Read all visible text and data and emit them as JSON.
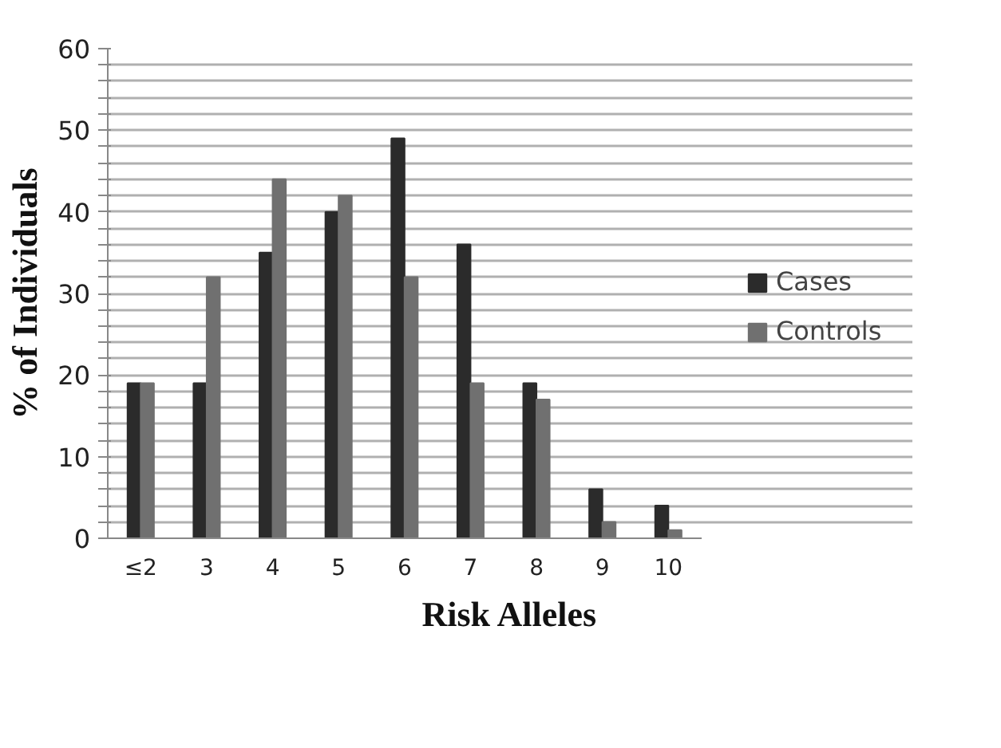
{
  "chart_data": {
    "type": "bar",
    "xlabel": "Risk Alleles",
    "ylabel": "% of Individuals",
    "categories": [
      "≤2",
      "3",
      "4",
      "5",
      "6",
      "7",
      "8",
      "9",
      "10"
    ],
    "series": [
      {
        "name": "Cases",
        "color": "#2b2b2b",
        "values": [
          19,
          19,
          35,
          40,
          49,
          36,
          19,
          6,
          4
        ]
      },
      {
        "name": "Controls",
        "color": "#707070",
        "values": [
          19,
          32,
          44,
          42,
          32,
          19,
          17,
          2,
          1
        ]
      }
    ],
    "ylim": [
      0,
      60
    ],
    "yticks": [
      0,
      {
        "value": 2,
        "label": null
      },
      {
        "value": 4,
        "label": null
      },
      {
        "value": 6,
        "label": null
      },
      {
        "value": 8,
        "label": null
      },
      10,
      {
        "value": 12,
        "label": null
      },
      {
        "value": 14,
        "label": null
      },
      {
        "value": 16,
        "label": null
      },
      {
        "value": 18,
        "label": null
      },
      20,
      {
        "value": 22,
        "label": null
      },
      {
        "value": 24,
        "label": null
      },
      {
        "value": 26,
        "label": null
      },
      {
        "value": 28,
        "label": null
      },
      30,
      {
        "value": 32,
        "label": null
      },
      {
        "value": 34,
        "label": null
      },
      {
        "value": 36,
        "label": null
      },
      {
        "value": 38,
        "label": null
      },
      40,
      {
        "value": 42,
        "label": null
      },
      {
        "value": 44,
        "label": null
      },
      {
        "value": 46,
        "label": null
      },
      {
        "value": 48,
        "label": null
      },
      50,
      {
        "value": 52,
        "label": null
      },
      {
        "value": 54,
        "label": null
      },
      {
        "value": 56,
        "label": null
      },
      {
        "value": 58,
        "label": null
      },
      60
    ],
    "grid": "y",
    "legend": "right"
  }
}
